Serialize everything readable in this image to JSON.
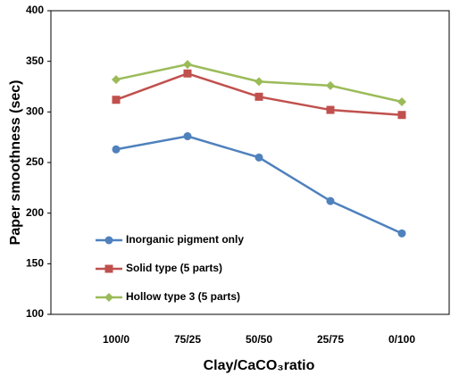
{
  "chart_data": {
    "type": "line",
    "xlabel": "Clay/CaCO₃ratio",
    "ylabel": "Paper smoothness (sec)",
    "categories": [
      "100/0",
      "75/25",
      "50/50",
      "25/75",
      "0/100"
    ],
    "series": [
      {
        "name": "Inorganic pigment only",
        "color": "#4f81bd",
        "marker": "circle",
        "values": [
          263,
          276,
          255,
          212,
          180
        ]
      },
      {
        "name": "Solid type (5 parts)",
        "color": "#c0504d",
        "marker": "square",
        "values": [
          312,
          338,
          315,
          302,
          297
        ]
      },
      {
        "name": "Hollow type 3 (5 parts)",
        "color": "#9bbb59",
        "marker": "diamond",
        "values": [
          332,
          347,
          330,
          326,
          310
        ]
      }
    ],
    "ylim": [
      100,
      400
    ],
    "yticks": [
      100,
      150,
      200,
      250,
      300,
      350,
      400
    ],
    "grid": false,
    "legend": "lower left"
  }
}
